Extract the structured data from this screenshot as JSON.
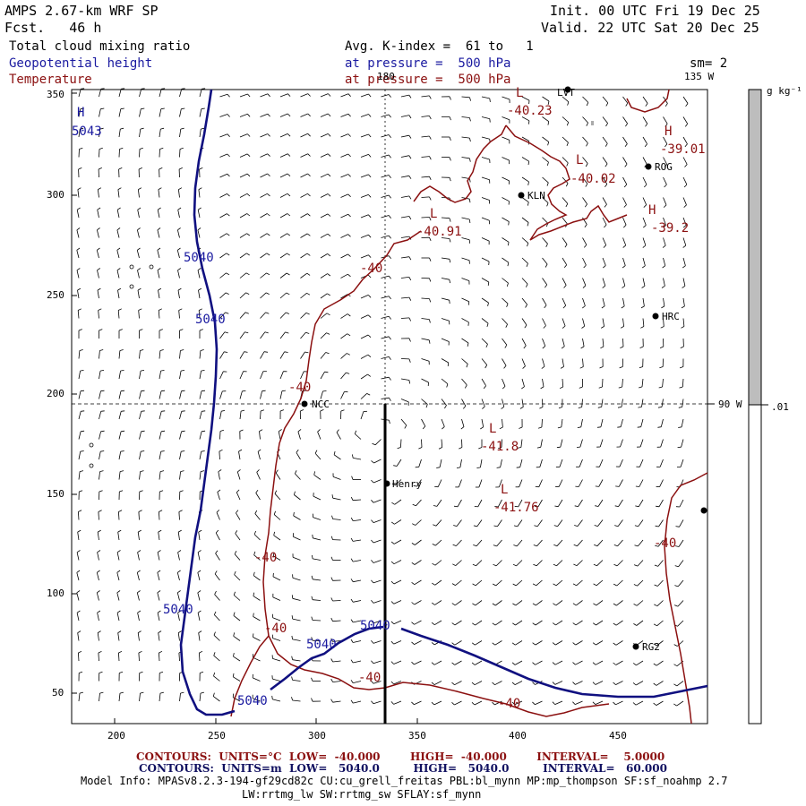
{
  "header": {
    "title": "AMPS 2.67-km WRF SP",
    "fcst": "Fcst.   46 h",
    "init": "Init. 00 UTC Fri 19 Dec 25",
    "valid": "Valid. 22 UTC Sat 20 Dec 25",
    "field_cloud": "Total cloud mixing ratio",
    "field_geo": "Geopotential height",
    "field_temp": "Temperature",
    "avg": "Avg. K-index =  61 to   1",
    "geo_pressure": "at pressure =  500 hPa",
    "temp_pressure": "at pressure =  500 hPa",
    "sm": "sm= 2"
  },
  "axes": {
    "x_ticks": [
      "200",
      "250",
      "300",
      "350",
      "400",
      "450"
    ],
    "y_ticks": [
      "350",
      "300",
      "250",
      "200",
      "150",
      "100",
      "50"
    ],
    "lon_180": "180",
    "lon_135": "135 W",
    "lon_90": "90 W"
  },
  "colorbar": {
    "unit": "g kg⁻¹",
    "tick_label": ".01",
    "fill_color": "#bdbdbd"
  },
  "stations": [
    {
      "name": "LVT"
    },
    {
      "name": "ROG"
    },
    {
      "name": "KLN"
    },
    {
      "name": "HRC"
    },
    {
      "name": "NCC"
    },
    {
      "name": "Henry"
    },
    {
      "name": "RG2"
    }
  ],
  "temperature_labels": [
    "-40.23",
    "-39.01",
    "-40.02",
    "-39.2",
    "-40.91",
    "-40",
    "-40",
    "-41.8",
    "-41.76",
    "-40",
    "-40",
    "-40",
    "-40",
    "-40"
  ],
  "height_labels": [
    "5040",
    "5040",
    "5040",
    "5040",
    "5040",
    "5040"
  ],
  "extrema": {
    "h_left": "H",
    "h_left_val": "5043",
    "l1": "L",
    "h1": "H",
    "l2": "L",
    "h2": "H",
    "l3": "L",
    "l4": "L",
    "l5": "L"
  },
  "footer": {
    "temp_contours": "CONTOURS:  UNITS=°C  LOW=  -40.000        HIGH=  -40.000        INTERVAL=    5.0000",
    "height_contours": "CONTOURS:  UNITS=m  LOW=   5040.0         HIGH=   5040.0         INTERVAL=   60.000",
    "model_info": "Model Info: MPASv8.2.3-194-gf29cd82c CU:cu_grell_freitas PBL:bl_mynn MP:mp_thompson SF:sf_noahmp 2.7",
    "model_info2": "LW:rrtmg_lw SW:rrtmg_sw SFLAY:sf_mynn"
  },
  "colors": {
    "temperature": "#8b1010",
    "height": "#1a1aa0",
    "section": "#000000"
  }
}
